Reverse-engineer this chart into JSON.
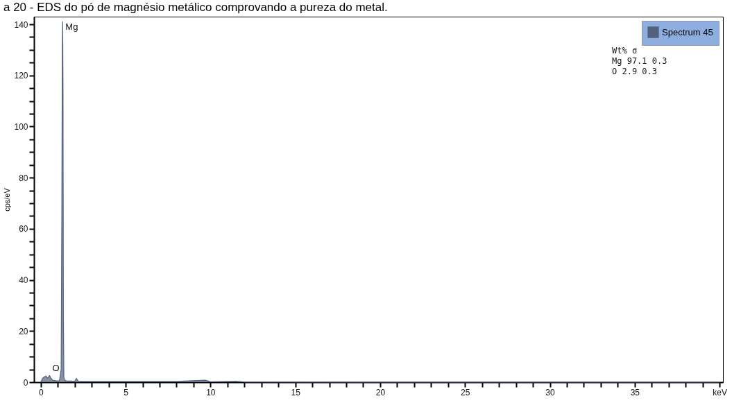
{
  "chart_data": {
    "type": "area",
    "title": "a 20 - EDS do pó de magnésio metálico comprovando a pureza do metal.",
    "ylabel": "cps/eV",
    "legend": "top right",
    "grid": false,
    "xlim": [
      -0.4,
      40.2
    ],
    "ylim": [
      0,
      143
    ],
    "xticks": [
      0,
      {
        "value": 1,
        "label": null
      },
      {
        "value": 2,
        "label": null
      },
      {
        "value": 3,
        "label": null
      },
      {
        "value": 4,
        "label": null
      },
      5,
      {
        "value": 6,
        "label": null
      },
      {
        "value": 7,
        "label": null
      },
      {
        "value": 8,
        "label": null
      },
      {
        "value": 9,
        "label": null
      },
      10,
      {
        "value": 11,
        "label": null
      },
      {
        "value": 12,
        "label": null
      },
      {
        "value": 13,
        "label": null
      },
      {
        "value": 14,
        "label": null
      },
      15,
      {
        "value": 16,
        "label": null
      },
      {
        "value": 17,
        "label": null
      },
      {
        "value": 18,
        "label": null
      },
      {
        "value": 19,
        "label": null
      },
      20,
      {
        "value": 21,
        "label": null
      },
      {
        "value": 22,
        "label": null
      },
      {
        "value": 23,
        "label": null
      },
      {
        "value": 24,
        "label": null
      },
      25,
      {
        "value": 26,
        "label": null
      },
      {
        "value": 27,
        "label": null
      },
      {
        "value": 28,
        "label": null
      },
      {
        "value": 29,
        "label": null
      },
      30,
      {
        "value": 31,
        "label": null
      },
      {
        "value": 32,
        "label": null
      },
      {
        "value": 33,
        "label": null
      },
      {
        "value": 34,
        "label": null
      },
      35,
      {
        "value": 36,
        "label": null
      },
      {
        "value": 37,
        "label": null
      },
      {
        "value": 38,
        "label": null
      },
      {
        "value": 39,
        "label": null
      },
      {
        "value": 40,
        "label": "keV"
      }
    ],
    "yticks": [
      0,
      {
        "value": 5,
        "label": null
      },
      {
        "value": 10,
        "label": null
      },
      {
        "value": 15,
        "label": null
      },
      20,
      {
        "value": 25,
        "label": null
      },
      {
        "value": 30,
        "label": null
      },
      {
        "value": 35,
        "label": null
      },
      40,
      {
        "value": 45,
        "label": null
      },
      {
        "value": 50,
        "label": null
      },
      {
        "value": 55,
        "label": null
      },
      60,
      {
        "value": 65,
        "label": null
      },
      {
        "value": 70,
        "label": null
      },
      {
        "value": 75,
        "label": null
      },
      80,
      {
        "value": 85,
        "label": null
      },
      {
        "value": 90,
        "label": null
      },
      {
        "value": 95,
        "label": null
      },
      100,
      {
        "value": 105,
        "label": null
      },
      {
        "value": 110,
        "label": null
      },
      {
        "value": 115,
        "label": null
      },
      120,
      {
        "value": 125,
        "label": null
      },
      {
        "value": 130,
        "label": null
      },
      {
        "value": 135,
        "label": null
      },
      140
    ],
    "series": [
      {
        "name": "Spectrum 45",
        "color": "#52627e",
        "x": [
          0,
          0.1,
          0.2,
          0.3,
          0.4,
          0.52,
          0.6,
          0.7,
          0.9,
          1.1,
          1.2,
          1.24,
          1.27,
          1.29,
          1.31,
          1.33,
          1.36,
          1.4,
          1.5,
          2.0,
          2.1,
          2.2,
          3,
          5,
          8,
          9.7,
          10,
          11.5,
          12,
          20,
          40
        ],
        "values": [
          0,
          1.5,
          2,
          2.4,
          1.5,
          2.6,
          1.5,
          0.8,
          0.5,
          0.6,
          5,
          67,
          131,
          141,
          115,
          28,
          2,
          0.8,
          0.5,
          0.4,
          1.5,
          0.4,
          0.3,
          0.3,
          0.3,
          0.8,
          0.2,
          0.4,
          0.1,
          0,
          0
        ]
      }
    ],
    "annotations": [
      {
        "text": "Mg",
        "x": 1.29,
        "y": 141
      },
      {
        "text": "O",
        "x": 0.52,
        "y": 2.6
      },
      "Wt%   σ",
      "Mg   97.1   0.3",
      "O   2.9   0.3"
    ]
  }
}
